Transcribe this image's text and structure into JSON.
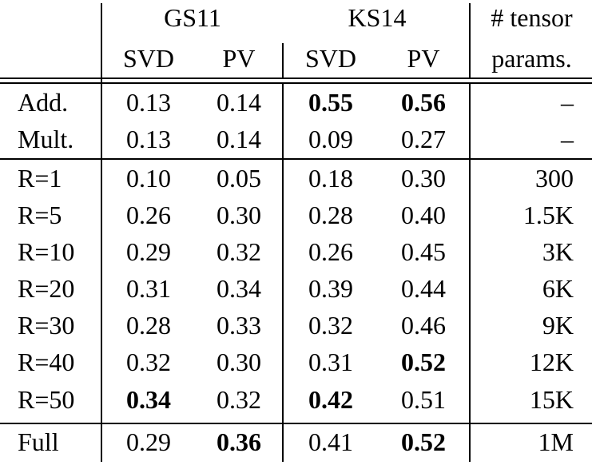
{
  "header": {
    "group1": "GS11",
    "group2": "KS14",
    "params_line1": "# tensor",
    "params_line2": "params.",
    "sub": [
      "SVD",
      "PV",
      "SVD",
      "PV"
    ]
  },
  "rows": [
    {
      "label": "Add.",
      "cells": [
        "0.13",
        "0.14",
        "0.55",
        "0.56"
      ],
      "bold": [
        false,
        false,
        true,
        true
      ],
      "params": "–"
    },
    {
      "label": "Mult.",
      "cells": [
        "0.13",
        "0.14",
        "0.09",
        "0.27"
      ],
      "bold": [
        false,
        false,
        false,
        false
      ],
      "params": "–"
    },
    {
      "label": "R=1",
      "cells": [
        "0.10",
        "0.05",
        "0.18",
        "0.30"
      ],
      "bold": [
        false,
        false,
        false,
        false
      ],
      "params": "300"
    },
    {
      "label": "R=5",
      "cells": [
        "0.26",
        "0.30",
        "0.28",
        "0.40"
      ],
      "bold": [
        false,
        false,
        false,
        false
      ],
      "params": "1.5K"
    },
    {
      "label": "R=10",
      "cells": [
        "0.29",
        "0.32",
        "0.26",
        "0.45"
      ],
      "bold": [
        false,
        false,
        false,
        false
      ],
      "params": "3K"
    },
    {
      "label": "R=20",
      "cells": [
        "0.31",
        "0.34",
        "0.39",
        "0.44"
      ],
      "bold": [
        false,
        false,
        false,
        false
      ],
      "params": "6K"
    },
    {
      "label": "R=30",
      "cells": [
        "0.28",
        "0.33",
        "0.32",
        "0.46"
      ],
      "bold": [
        false,
        false,
        false,
        false
      ],
      "params": "9K"
    },
    {
      "label": "R=40",
      "cells": [
        "0.32",
        "0.30",
        "0.31",
        "0.52"
      ],
      "bold": [
        false,
        false,
        false,
        true
      ],
      "params": "12K"
    },
    {
      "label": "R=50",
      "cells": [
        "0.34",
        "0.32",
        "0.42",
        "0.51"
      ],
      "bold": [
        true,
        false,
        true,
        false
      ],
      "params": "15K"
    },
    {
      "label": "Full",
      "cells": [
        "0.29",
        "0.36",
        "0.41",
        "0.52"
      ],
      "bold": [
        false,
        true,
        false,
        true
      ],
      "params": "1M"
    }
  ]
}
